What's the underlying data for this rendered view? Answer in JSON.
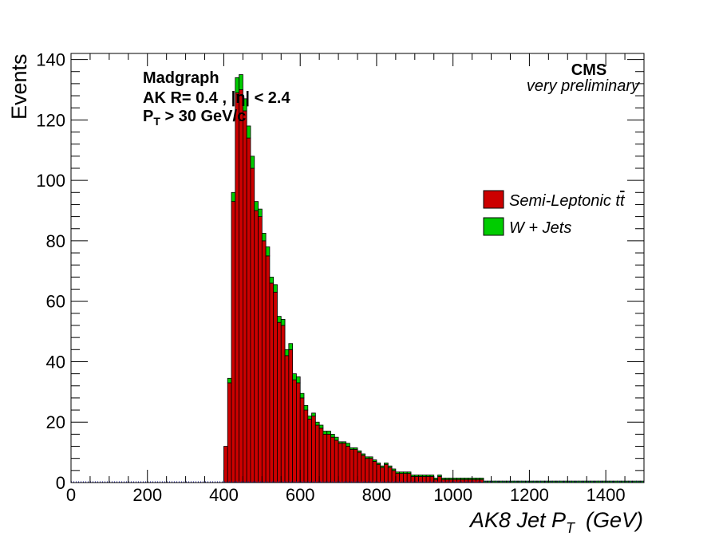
{
  "chart_data": {
    "type": "bar",
    "stacked": true,
    "xlabel": "AK8   Jet   P",
    "xlabel_sub": "T",
    "xlabel_unit": "(GeV)",
    "ylabel": "Events",
    "xlim": [
      0,
      1500
    ],
    "ylim": [
      0,
      142
    ],
    "x_ticks": [
      0,
      200,
      400,
      600,
      800,
      1000,
      1200,
      1400
    ],
    "y_ticks": [
      0,
      20,
      40,
      60,
      80,
      100,
      120,
      140
    ],
    "bin_width": 10,
    "bin_lo": [
      400,
      410,
      420,
      430,
      440,
      450,
      460,
      470,
      480,
      490,
      500,
      510,
      520,
      530,
      540,
      550,
      560,
      570,
      580,
      590,
      600,
      610,
      620,
      630,
      640,
      650,
      660,
      670,
      680,
      690,
      700,
      710,
      720,
      730,
      740,
      750,
      760,
      770,
      780,
      790,
      800,
      810,
      820,
      830,
      840,
      850,
      860,
      870,
      880,
      890,
      900,
      910,
      920,
      930,
      940,
      950,
      960,
      970,
      980,
      990,
      1000,
      1010,
      1020,
      1030,
      1040,
      1050,
      1060,
      1070,
      1080,
      1090,
      1100,
      1110,
      1120,
      1130,
      1140,
      1150,
      1160,
      1170,
      1180,
      1190,
      1200,
      1210,
      1220,
      1230,
      1240,
      1250,
      1260,
      1270,
      1280,
      1290,
      1300,
      1310,
      1320,
      1330,
      1340,
      1350,
      1360,
      1370,
      1380,
      1390,
      1400,
      1410,
      1420,
      1430,
      1440,
      1450,
      1460,
      1470,
      1480,
      1490
    ],
    "series": [
      {
        "name": "Semi-Leptonic t",
        "color": "#cc0000",
        "values": [
          12,
          33,
          93,
          129,
          130,
          123,
          114,
          104,
          90,
          88,
          80,
          75,
          66,
          63,
          53,
          52,
          42,
          44,
          34,
          33,
          28,
          24,
          21,
          22,
          19,
          18,
          16,
          16,
          15,
          14,
          13,
          13,
          12,
          11,
          11,
          10,
          9,
          8,
          8,
          7,
          6,
          5,
          6,
          5,
          4,
          3,
          3,
          3,
          3,
          2,
          2,
          2,
          2,
          2,
          2,
          1,
          2,
          1,
          1,
          1,
          1,
          1,
          1,
          1,
          1,
          1,
          1,
          1,
          0,
          0,
          0,
          0,
          0,
          0,
          0,
          0,
          0,
          0,
          0,
          0,
          0,
          0,
          0,
          0,
          0,
          0,
          0,
          0,
          0,
          0,
          0,
          0,
          0,
          0,
          0,
          0,
          0,
          0,
          0,
          0,
          0,
          0,
          0,
          0,
          0,
          0,
          0,
          0,
          0,
          0
        ]
      },
      {
        "name": "W + Jets",
        "color": "#00cc00",
        "values": [
          0,
          1.5,
          3,
          5,
          5,
          4,
          4,
          4,
          3,
          2.5,
          2.5,
          3,
          2,
          2.5,
          2,
          2,
          2,
          2,
          2,
          2,
          1.5,
          1.5,
          1,
          1,
          1,
          1,
          1,
          1,
          1,
          1,
          0.5,
          0.5,
          1,
          0.5,
          0.5,
          0.5,
          0.5,
          0.5,
          0.5,
          0.5,
          0.5,
          0.5,
          0.5,
          0.5,
          0.5,
          0.5,
          0.5,
          0.5,
          0.5,
          0.5,
          0.5,
          0.5,
          0.5,
          0.5,
          0.5,
          0.5,
          0.5,
          0.5,
          0.5,
          0.5,
          0.5,
          0.5,
          0.5,
          0.5,
          0.5,
          0.5,
          0.5,
          0.5,
          0.5,
          0.5,
          0.5,
          0.5,
          0.5,
          0.5,
          0.5,
          0.5,
          0.5,
          0.5,
          0.5,
          0.5,
          0.5,
          0.5,
          0.5,
          0.5,
          0.5,
          0.5,
          0.5,
          0.5,
          0.5,
          0.5,
          0.5,
          0.5,
          0.5,
          0.5,
          0.5,
          0.5,
          0.5,
          0.5,
          0.5,
          0.5,
          0.5,
          0.5,
          0.5,
          0.5,
          0.5,
          0.5,
          0.5,
          0.5,
          0.5,
          0.5
        ]
      }
    ],
    "annotations": {
      "generator": "Madgraph",
      "jet_line_a": "AK R= 0.4 , |",
      "eta_symbol": "η",
      "jet_line_b": "| < 2.4",
      "pt_p": "P",
      "pt_sub": "T",
      "pt_rest": " > 30 GeV/c",
      "experiment": "CMS",
      "status": "very preliminary"
    },
    "legend_placement": "right",
    "legend_ttbar_suffix": "t",
    "grid": false
  }
}
